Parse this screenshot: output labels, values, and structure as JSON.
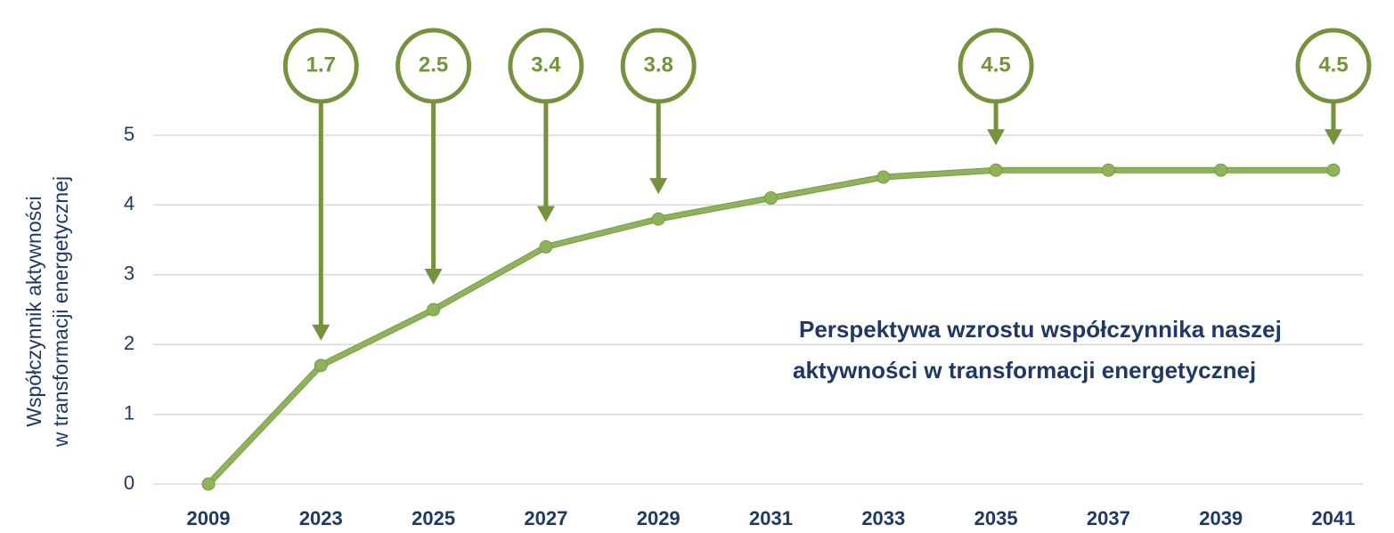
{
  "chart_data": {
    "type": "line",
    "title_lines": [
      "Perspektywa wzrostu współczynnika naszej",
      "aktywności w transformacji energetycznej"
    ],
    "y_label_lines": [
      "Współczynnik aktywności",
      "w transformacji energetycznej"
    ],
    "categories": [
      "2009",
      "2023",
      "2025",
      "2027",
      "2029",
      "2031",
      "2033",
      "2035",
      "2037",
      "2039",
      "2041"
    ],
    "series": [
      {
        "name": "Współczynnik aktywności",
        "color": "#8fb35a",
        "values": [
          0,
          1.7,
          2.5,
          3.4,
          3.8,
          4.1,
          4.4,
          4.5,
          4.5,
          4.5,
          4.5
        ],
        "value_labels": [
          null,
          "1.7",
          "2.5",
          "3.4",
          "3.8",
          null,
          null,
          "4.5",
          null,
          null,
          "4.5"
        ]
      }
    ],
    "annotation_color": "#76923c",
    "ylim": [
      0,
      5
    ],
    "yticks": [
      0,
      1,
      2,
      3,
      4,
      5
    ],
    "grid": true
  }
}
